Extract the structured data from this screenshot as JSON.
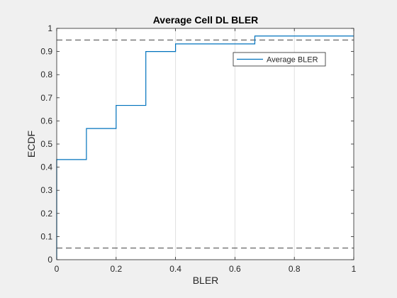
{
  "chart_data": {
    "type": "line",
    "title": "Average Cell DL BLER",
    "xlabel": "BLER",
    "ylabel": "ECDF",
    "xlim": [
      0,
      1
    ],
    "ylim": [
      0,
      1
    ],
    "xticks": [
      0,
      0.2,
      0.4,
      0.6,
      0.8,
      1
    ],
    "xtick_labels": [
      "0",
      "0.2",
      "0.4",
      "0.6",
      "0.8",
      "1"
    ],
    "yticks": [
      0,
      0.1,
      0.2,
      0.3,
      0.4,
      0.5,
      0.6,
      0.7,
      0.8,
      0.9,
      1
    ],
    "ytick_labels": [
      "0",
      "0.1",
      "0.2",
      "0.3",
      "0.4",
      "0.5",
      "0.6",
      "0.7",
      "0.8",
      "0.9",
      "1"
    ],
    "grid": "vertical",
    "legend_position": "top-right",
    "series": [
      {
        "name": "Average BLER",
        "style": "stairs",
        "color": "#0072bd",
        "x": [
          0,
          0,
          0.1,
          0.1,
          0.2,
          0.2,
          0.3,
          0.3,
          0.4,
          0.4,
          0.667,
          0.667,
          1
        ],
        "y": [
          0,
          0.433,
          0.433,
          0.567,
          0.567,
          0.667,
          0.667,
          0.9,
          0.9,
          0.933,
          0.933,
          0.967,
          0.967
        ]
      }
    ],
    "reference_lines": [
      {
        "orientation": "horizontal",
        "y": 0.95,
        "style": "dashed",
        "color": "#262626"
      },
      {
        "orientation": "horizontal",
        "y": 0.05,
        "style": "dashed",
        "color": "#262626"
      }
    ]
  }
}
